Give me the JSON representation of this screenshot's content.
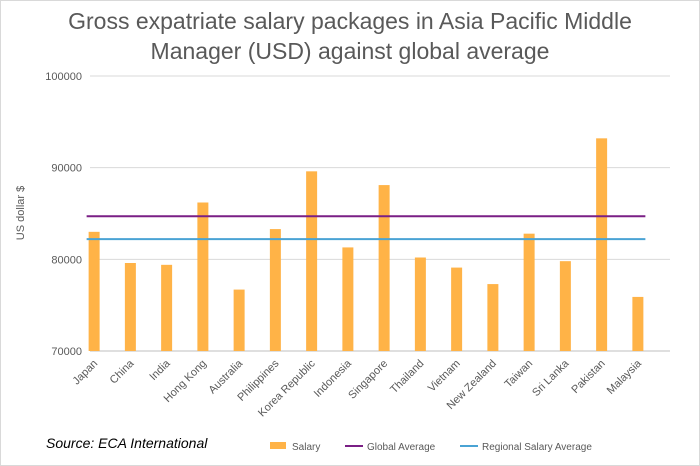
{
  "chart_data": {
    "type": "bar",
    "title": "Gross expatriate salary packages in Asia Pacific Middle Manager (USD) against global average",
    "ylabel": "US dollar $",
    "xlabel": "",
    "ylim": [
      70000,
      100000
    ],
    "yticks": [
      "70000",
      "80000",
      "90000",
      "100000"
    ],
    "categories": [
      "Japan",
      "China",
      "India",
      "Hong Kong",
      "Australia",
      "Philippines",
      "Korea Republic",
      "Indonesia",
      "Singapore",
      "Thailand",
      "Vietnam",
      "New Zealand",
      "Taiwan",
      "Sri Lanka",
      "Pakistan",
      "Malaysia"
    ],
    "series": [
      {
        "name": "Salary",
        "type": "bar",
        "color": "#ffb347",
        "values": [
          83000,
          79600,
          79400,
          86200,
          76700,
          83300,
          89600,
          81300,
          88100,
          80200,
          79100,
          77300,
          82800,
          79800,
          93200,
          75900
        ]
      },
      {
        "name": "Global Average",
        "type": "line",
        "color": "#7a1f85",
        "value": 84700
      },
      {
        "name": "Regional Salary Average",
        "type": "line",
        "color": "#4aa3d4",
        "value": 82200
      }
    ],
    "grid": true,
    "legend": "bottom"
  },
  "source": "Source: ECA International"
}
